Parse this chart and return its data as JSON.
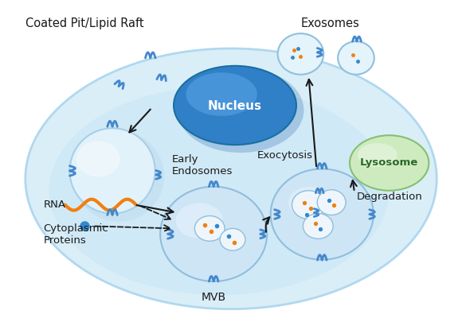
{
  "bg_color": "#ffffff",
  "cell_color": "#daeef8",
  "cell_border": "#b0d8ef",
  "cell_inner_color": "#c8e6f5",
  "nucleus_fill_top": "#4a9fd4",
  "nucleus_fill_bot": "#1a5fa0",
  "nucleus_border": "#1a6fa0",
  "endo_fill": "#e2f2fa",
  "endo_border": "#a8cfe8",
  "mvb_fill": "#cde5f5",
  "mvb_border": "#90bedd",
  "mvb2_fill": "#cde5f5",
  "lysosome_fill": "#ceebc0",
  "lysosome_border": "#85c070",
  "exosome_fill": "#e5f3fb",
  "exosome_border": "#90c0de",
  "membrane_color": "#4488cc",
  "rna_color": "#f08010",
  "dot_blue": "#3388cc",
  "dot_orange": "#f08010",
  "arrow_color": "#1a1a1a",
  "text_color": "#1a1a1a",
  "texts": {
    "coated": "Coated Pit/Lipid Raft",
    "nucleus": "Nucleus",
    "early_endo": "Early\nEndosomes",
    "mvb": "MVB",
    "lysosome": "Lysosome",
    "exosomes": "Exosomes",
    "exocytosis": "Exocytosis",
    "degradation": "Degradation",
    "rna": "RNA",
    "cyto": "Cytoplasmic\nProteins"
  }
}
